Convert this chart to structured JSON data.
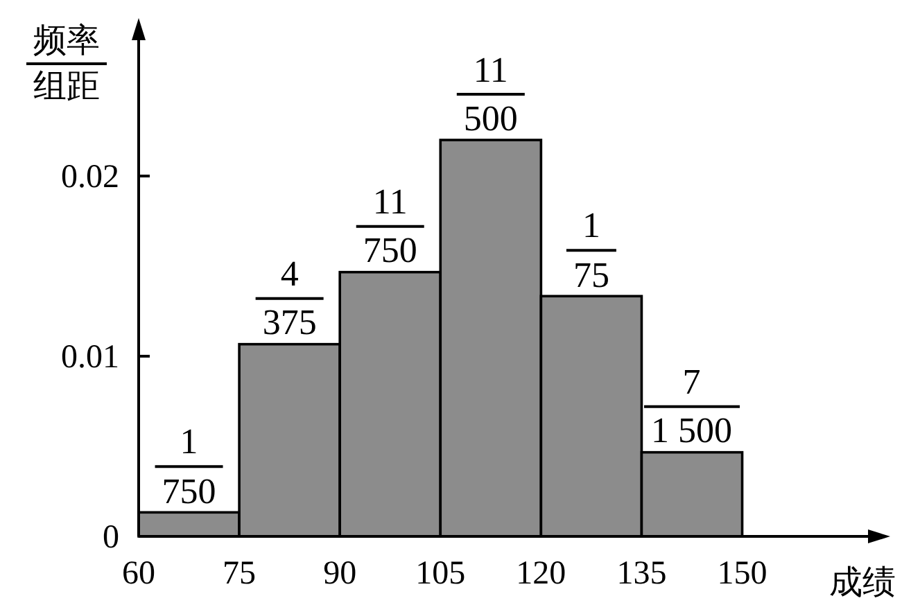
{
  "chart_data": {
    "type": "histogram",
    "xlabel": "成绩",
    "ylabel": "频率/组距",
    "bins": [
      60,
      75,
      90,
      105,
      120,
      135,
      150
    ],
    "values": [
      0.0013333,
      0.0106667,
      0.0146667,
      0.022,
      0.0133333,
      0.0046667
    ],
    "value_labels": [
      "1/750",
      "4/375",
      "11/750",
      "11/500",
      "1/75",
      "7/1 500"
    ],
    "color": "#8c8c8c",
    "xlim": [
      60,
      170
    ],
    "ylim": [
      0,
      0.028
    ],
    "xticks": [
      60,
      75,
      90,
      105,
      120,
      135,
      150
    ],
    "yticks": [
      0,
      0.01,
      0.02
    ]
  }
}
